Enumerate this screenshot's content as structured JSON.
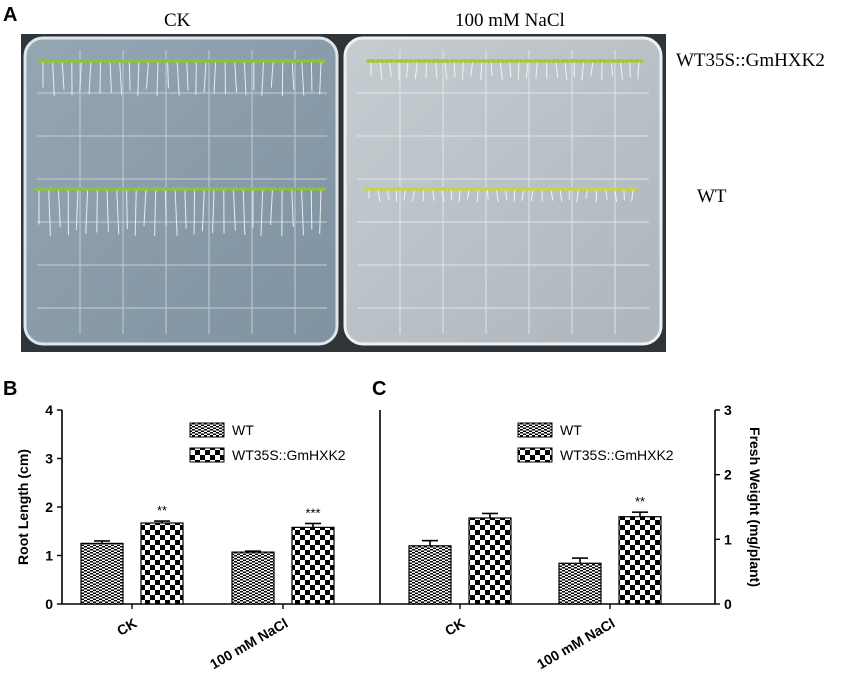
{
  "figure": {
    "panel_a": {
      "letter": "A",
      "col_labels": [
        "CK",
        "100 mM NaCl"
      ],
      "row_labels": [
        "WT35S::GmHXK2",
        "WT"
      ]
    },
    "panel_b_letter": "B",
    "panel_c_letter": "C"
  },
  "colors": {
    "bar_wt_pattern": "horizontal-stripe",
    "bar_ox_pattern": "checkerboard",
    "axis": "#000000",
    "plate_bg": "#8a9ba8"
  },
  "chart_data": [
    {
      "type": "bar",
      "panel": "B",
      "ylabel": "Root Length (cm)",
      "ylim": [
        0,
        4
      ],
      "yticks": [
        0,
        1,
        2,
        3,
        4
      ],
      "categories": [
        "CK",
        "100 mM NaCl"
      ],
      "legend_position": "top-right",
      "series": [
        {
          "name": "WT",
          "values": [
            1.25,
            1.07
          ],
          "errors": [
            0.05,
            0.02
          ]
        },
        {
          "name": "WT35S::GmHXK2",
          "values": [
            1.67,
            1.58
          ],
          "errors": [
            0.04,
            0.08
          ]
        }
      ],
      "annotations": [
        {
          "series": 1,
          "category": 0,
          "text": "**"
        },
        {
          "series": 1,
          "category": 1,
          "text": "***"
        }
      ]
    },
    {
      "type": "bar",
      "panel": "C",
      "ylabel": "Fresh Weight (mg/plant)",
      "ylim": [
        0,
        3
      ],
      "yticks": [
        0,
        1,
        2,
        3
      ],
      "categories": [
        "CK",
        "100 mM NaCl"
      ],
      "legend_position": "top-right",
      "series": [
        {
          "name": "WT",
          "values": [
            0.9,
            0.63
          ],
          "errors": [
            0.08,
            0.08
          ]
        },
        {
          "name": "WT35S::GmHXK2",
          "values": [
            1.33,
            1.35
          ],
          "errors": [
            0.07,
            0.07
          ]
        }
      ],
      "annotations": [
        {
          "series": 1,
          "category": 1,
          "text": "**"
        }
      ]
    }
  ]
}
